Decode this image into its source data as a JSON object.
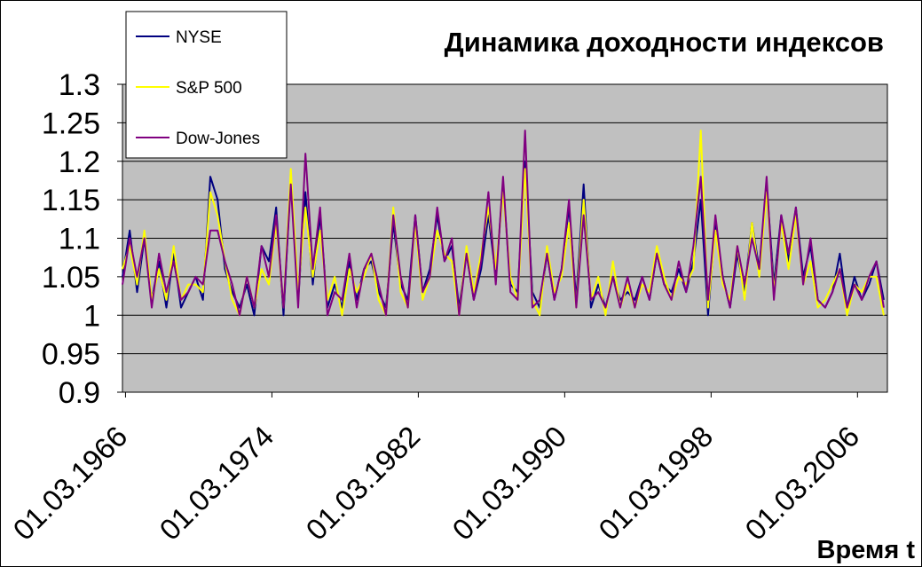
{
  "chart_data": {
    "type": "line",
    "title": "Динамика доходности индексов",
    "xlabel": "Время t",
    "ylabel": "",
    "ylim": [
      0.9,
      1.3
    ],
    "yticks": [
      "0.9",
      "0.95",
      "1",
      "1.05",
      "1.1",
      "1.15",
      "1.2",
      "1.25",
      "1.3"
    ],
    "x_tick_labels": [
      "01.03.1966",
      "01.03.1974",
      "01.03.1982",
      "01.03.1990",
      "01.03.1998",
      "01.03.2006"
    ],
    "x_range_years": [
      1966.0,
      2007.8
    ],
    "grid": "horizontal",
    "plot_background": "#C0C0C0",
    "legend_position": "top-left",
    "series": [
      {
        "name": "NYSE",
        "color": "#000080",
        "x": [
          1966.0,
          1966.4,
          1966.8,
          1967.2,
          1967.6,
          1968.0,
          1968.4,
          1968.8,
          1969.2,
          1969.6,
          1970.0,
          1970.4,
          1970.8,
          1971.2,
          1971.6,
          1972.0,
          1972.4,
          1972.8,
          1973.2,
          1973.6,
          1974.0,
          1974.4,
          1974.8,
          1975.2,
          1975.6,
          1976.0,
          1976.4,
          1976.8,
          1977.2,
          1977.6,
          1978.0,
          1978.4,
          1978.8,
          1979.2,
          1979.6,
          1980.0,
          1980.4,
          1980.8,
          1981.2,
          1981.6,
          1982.0,
          1982.4,
          1982.8,
          1983.2,
          1983.6,
          1984.0,
          1984.4,
          1984.8,
          1985.2,
          1985.6,
          1986.0,
          1986.4,
          1986.8,
          1987.2,
          1987.6,
          1988.0,
          1988.4,
          1988.8,
          1989.2,
          1989.6,
          1990.0,
          1990.4,
          1990.8,
          1991.2,
          1991.6,
          1992.0,
          1992.4,
          1992.8,
          1993.2,
          1993.6,
          1994.0,
          1994.4,
          1994.8,
          1995.2,
          1995.6,
          1996.0,
          1996.4,
          1996.8,
          1997.2,
          1997.6,
          1998.0,
          1998.4,
          1998.8,
          1999.2,
          1999.6,
          2000.0,
          2000.4,
          2000.8,
          2001.2,
          2001.6,
          2002.0,
          2002.4,
          2002.8,
          2003.2,
          2003.6,
          2004.0,
          2004.4,
          2004.8,
          2005.2,
          2005.6,
          2006.0,
          2006.4,
          2006.8,
          2007.2,
          2007.6
        ],
        "values": [
          1.05,
          1.11,
          1.03,
          1.1,
          1.02,
          1.07,
          1.01,
          1.08,
          1.01,
          1.03,
          1.05,
          1.02,
          1.18,
          1.15,
          1.06,
          1.03,
          1.01,
          1.04,
          1.0,
          1.09,
          1.07,
          1.14,
          1.0,
          1.18,
          1.02,
          1.16,
          1.04,
          1.13,
          1.01,
          1.04,
          1.01,
          1.07,
          1.02,
          1.06,
          1.07,
          1.03,
          1.01,
          1.12,
          1.04,
          1.02,
          1.13,
          1.03,
          1.06,
          1.13,
          1.07,
          1.09,
          1.01,
          1.08,
          1.02,
          1.06,
          1.13,
          1.05,
          1.17,
          1.04,
          1.03,
          1.2,
          1.03,
          1.01,
          1.08,
          1.02,
          1.06,
          1.14,
          1.02,
          1.17,
          1.01,
          1.04,
          1.01,
          1.05,
          1.02,
          1.03,
          1.02,
          1.05,
          1.02,
          1.08,
          1.04,
          1.03,
          1.06,
          1.03,
          1.07,
          1.15,
          1.0,
          1.12,
          1.05,
          1.01,
          1.08,
          1.03,
          1.12,
          1.06,
          1.17,
          1.04,
          1.13,
          1.07,
          1.14,
          1.05,
          1.09,
          1.02,
          1.01,
          1.03,
          1.08,
          1.01,
          1.05,
          1.02,
          1.04,
          1.07,
          1.02
        ],
        "y_range_note": ""
      },
      {
        "name": "S&P 500",
        "color": "#FFFF00",
        "x": [
          1966.0,
          1966.4,
          1966.8,
          1967.2,
          1967.6,
          1968.0,
          1968.4,
          1968.8,
          1969.2,
          1969.6,
          1970.0,
          1970.4,
          1970.8,
          1971.2,
          1971.6,
          1972.0,
          1972.4,
          1972.8,
          1973.2,
          1973.6,
          1974.0,
          1974.4,
          1974.8,
          1975.2,
          1975.6,
          1976.0,
          1976.4,
          1976.8,
          1977.2,
          1977.6,
          1978.0,
          1978.4,
          1978.8,
          1979.2,
          1979.6,
          1980.0,
          1980.4,
          1980.8,
          1981.2,
          1981.6,
          1982.0,
          1982.4,
          1982.8,
          1983.2,
          1983.6,
          1984.0,
          1984.4,
          1984.8,
          1985.2,
          1985.6,
          1986.0,
          1986.4,
          1986.8,
          1987.2,
          1987.6,
          1988.0,
          1988.4,
          1988.8,
          1989.2,
          1989.6,
          1990.0,
          1990.4,
          1990.8,
          1991.2,
          1991.6,
          1992.0,
          1992.4,
          1992.8,
          1993.2,
          1993.6,
          1994.0,
          1994.4,
          1994.8,
          1995.2,
          1995.6,
          1996.0,
          1996.4,
          1996.8,
          1997.2,
          1997.6,
          1998.0,
          1998.4,
          1998.8,
          1999.2,
          1999.6,
          2000.0,
          2000.4,
          2000.8,
          2001.2,
          2001.6,
          2002.0,
          2002.4,
          2002.8,
          2003.2,
          2003.6,
          2004.0,
          2004.4,
          2004.8,
          2005.2,
          2005.6,
          2006.0,
          2006.4,
          2006.8,
          2007.2,
          2007.6
        ],
        "values": [
          1.06,
          1.09,
          1.04,
          1.11,
          1.02,
          1.06,
          1.02,
          1.09,
          1.02,
          1.04,
          1.04,
          1.03,
          1.16,
          1.13,
          1.07,
          1.02,
          1.0,
          1.05,
          1.01,
          1.06,
          1.04,
          1.12,
          1.01,
          1.19,
          1.03,
          1.14,
          1.05,
          1.11,
          1.02,
          1.05,
          1.0,
          1.06,
          1.03,
          1.05,
          1.08,
          1.02,
          1.0,
          1.14,
          1.03,
          1.01,
          1.12,
          1.02,
          1.05,
          1.11,
          1.08,
          1.07,
          1.0,
          1.09,
          1.03,
          1.08,
          1.14,
          1.06,
          1.16,
          1.05,
          1.02,
          1.19,
          1.02,
          1.0,
          1.09,
          1.03,
          1.05,
          1.12,
          1.01,
          1.15,
          1.02,
          1.05,
          1.0,
          1.07,
          1.01,
          1.04,
          1.01,
          1.04,
          1.03,
          1.09,
          1.05,
          1.02,
          1.05,
          1.04,
          1.06,
          1.24,
          1.01,
          1.11,
          1.04,
          1.02,
          1.09,
          1.02,
          1.12,
          1.05,
          1.16,
          1.03,
          1.12,
          1.06,
          1.13,
          1.04,
          1.07,
          1.01,
          1.02,
          1.04,
          1.06,
          1.0,
          1.04,
          1.03,
          1.05,
          1.05,
          1.0
        ]
      },
      {
        "name": "Dow-Jones",
        "color": "#800080",
        "x": [
          1966.0,
          1966.4,
          1966.8,
          1967.2,
          1967.6,
          1968.0,
          1968.4,
          1968.8,
          1969.2,
          1969.6,
          1970.0,
          1970.4,
          1970.8,
          1971.2,
          1971.6,
          1972.0,
          1972.4,
          1972.8,
          1973.2,
          1973.6,
          1974.0,
          1974.4,
          1974.8,
          1975.2,
          1975.6,
          1976.0,
          1976.4,
          1976.8,
          1977.2,
          1977.6,
          1978.0,
          1978.4,
          1978.8,
          1979.2,
          1979.6,
          1980.0,
          1980.4,
          1980.8,
          1981.2,
          1981.6,
          1982.0,
          1982.4,
          1982.8,
          1983.2,
          1983.6,
          1984.0,
          1984.4,
          1984.8,
          1985.2,
          1985.6,
          1986.0,
          1986.4,
          1986.8,
          1987.2,
          1987.6,
          1988.0,
          1988.4,
          1988.8,
          1989.2,
          1989.6,
          1990.0,
          1990.4,
          1990.8,
          1991.2,
          1991.6,
          1992.0,
          1992.4,
          1992.8,
          1993.2,
          1993.6,
          1994.0,
          1994.4,
          1994.8,
          1995.2,
          1995.6,
          1996.0,
          1996.4,
          1996.8,
          1997.2,
          1997.6,
          1998.0,
          1998.4,
          1998.8,
          1999.2,
          1999.6,
          2000.0,
          2000.4,
          2000.8,
          2001.2,
          2001.6,
          2002.0,
          2002.4,
          2002.8,
          2003.2,
          2003.6,
          2004.0,
          2004.4,
          2004.8,
          2005.2,
          2005.6,
          2006.0,
          2006.4,
          2006.8,
          2007.2,
          2007.6
        ],
        "values": [
          1.04,
          1.1,
          1.05,
          1.1,
          1.01,
          1.08,
          1.03,
          1.07,
          1.02,
          1.03,
          1.05,
          1.04,
          1.11,
          1.11,
          1.07,
          1.04,
          1.0,
          1.05,
          1.01,
          1.09,
          1.05,
          1.13,
          1.01,
          1.17,
          1.01,
          1.21,
          1.06,
          1.14,
          1.0,
          1.03,
          1.02,
          1.08,
          1.01,
          1.06,
          1.08,
          1.04,
          1.0,
          1.13,
          1.05,
          1.01,
          1.13,
          1.03,
          1.05,
          1.14,
          1.07,
          1.1,
          1.0,
          1.08,
          1.02,
          1.07,
          1.16,
          1.04,
          1.18,
          1.03,
          1.02,
          1.24,
          1.01,
          1.02,
          1.08,
          1.02,
          1.06,
          1.15,
          1.01,
          1.13,
          1.02,
          1.03,
          1.01,
          1.05,
          1.01,
          1.05,
          1.01,
          1.05,
          1.02,
          1.08,
          1.04,
          1.02,
          1.07,
          1.03,
          1.09,
          1.18,
          1.02,
          1.13,
          1.05,
          1.01,
          1.09,
          1.04,
          1.1,
          1.06,
          1.18,
          1.02,
          1.13,
          1.08,
          1.14,
          1.04,
          1.1,
          1.02,
          1.01,
          1.03,
          1.06,
          1.01,
          1.04,
          1.02,
          1.05,
          1.07,
          1.01
        ]
      }
    ]
  }
}
